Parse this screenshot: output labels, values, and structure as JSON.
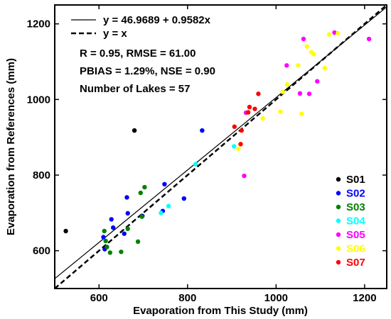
{
  "chart_data": {
    "type": "scatter",
    "xlabel": "Evaporation from This Study (mm)",
    "ylabel": "Evaporation from References (mm)",
    "xlim": [
      500,
      1250
    ],
    "ylim": [
      500,
      1250
    ],
    "xticks": [
      600,
      800,
      1000,
      1200
    ],
    "yticks": [
      600,
      800,
      1000,
      1200
    ],
    "grid": false,
    "legend_position": "bottom-right",
    "lines": [
      {
        "label": "y = 46.9689 + 0.9582x",
        "style": "solid",
        "intercept": 46.9689,
        "slope": 0.9582
      },
      {
        "label": "y = x",
        "style": "dashed",
        "intercept": 0,
        "slope": 1
      }
    ],
    "stats": [
      "R = 0.95, RMSE = 61.00",
      "PBIAS = 1.29%, NSE = 0.90",
      "Number of Lakes = 57"
    ],
    "series": [
      {
        "name": "S01",
        "color": "#000000",
        "points": [
          [
            525,
            652
          ],
          [
            680,
            918
          ]
        ]
      },
      {
        "name": "S02",
        "color": "#0000ff",
        "points": [
          [
            610,
            636
          ],
          [
            613,
            604
          ],
          [
            628,
            683
          ],
          [
            632,
            661
          ],
          [
            657,
            645
          ],
          [
            663,
            741
          ],
          [
            665,
            699
          ],
          [
            698,
            692
          ],
          [
            744,
            705
          ],
          [
            748,
            776
          ],
          [
            792,
            738
          ],
          [
            833,
            918
          ]
        ]
      },
      {
        "name": "S03",
        "color": "#008000",
        "points": [
          [
            612,
            652
          ],
          [
            615,
            626
          ],
          [
            618,
            610
          ],
          [
            625,
            595
          ],
          [
            650,
            597
          ],
          [
            665,
            658
          ],
          [
            688,
            624
          ],
          [
            694,
            753
          ],
          [
            697,
            690
          ],
          [
            703,
            768
          ]
        ]
      },
      {
        "name": "S04",
        "color": "#00ffff",
        "points": [
          [
            740,
            700
          ],
          [
            757,
            718
          ],
          [
            818,
            829
          ],
          [
            905,
            876
          ]
        ]
      },
      {
        "name": "S05",
        "color": "#ff00ff",
        "points": [
          [
            928,
            798
          ],
          [
            932,
            965
          ],
          [
            1024,
            1090
          ],
          [
            1054,
            1016
          ],
          [
            1062,
            1160
          ],
          [
            1075,
            1015
          ],
          [
            1093,
            1048
          ],
          [
            1132,
            1177
          ],
          [
            1210,
            1160
          ]
        ]
      },
      {
        "name": "S06",
        "color": "#ffff00",
        "points": [
          [
            915,
            870
          ],
          [
            970,
            950
          ],
          [
            1010,
            968
          ],
          [
            1015,
            1020
          ],
          [
            1025,
            1040
          ],
          [
            1050,
            1090
          ],
          [
            1058,
            962
          ],
          [
            1070,
            1140
          ],
          [
            1080,
            1125
          ],
          [
            1085,
            1120
          ],
          [
            1110,
            1083
          ],
          [
            1120,
            1172
          ],
          [
            1140,
            1175
          ]
        ]
      },
      {
        "name": "S07",
        "color": "#ff0000",
        "points": [
          [
            906,
            928
          ],
          [
            920,
            882
          ],
          [
            922,
            918
          ],
          [
            937,
            966
          ],
          [
            940,
            980
          ],
          [
            952,
            975
          ],
          [
            960,
            1015
          ]
        ]
      }
    ]
  }
}
